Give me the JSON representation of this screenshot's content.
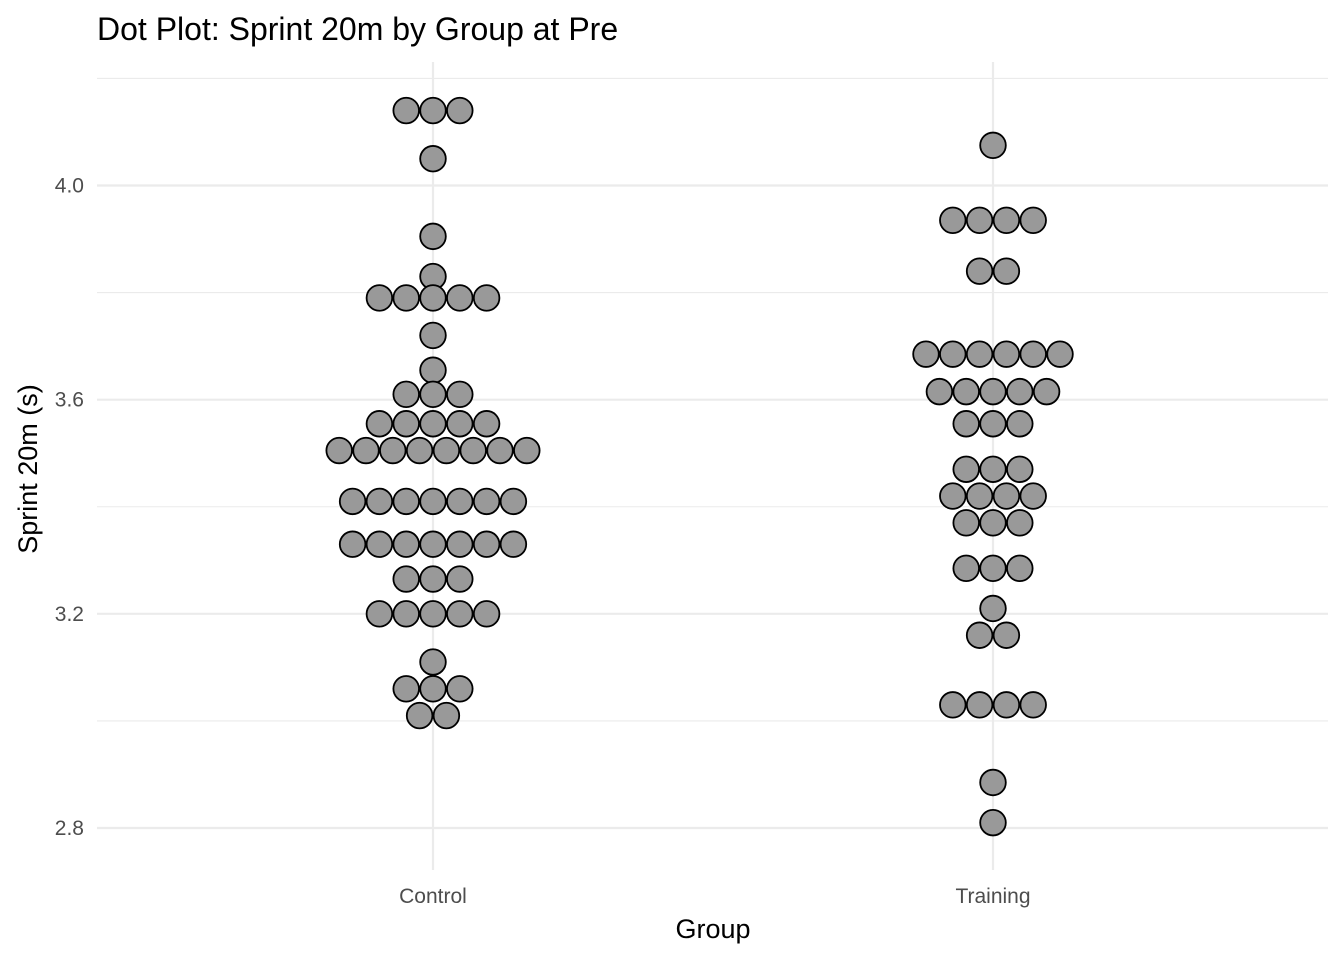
{
  "chart_data": {
    "type": "scatter",
    "subtype": "dotplot",
    "title": "Dot Plot: Sprint 20m by Group at Pre",
    "xlabel": "Group",
    "ylabel": "Sprint 20m (s)",
    "categories": [
      "Control",
      "Training"
    ],
    "y_ticks": [
      "2.8",
      "3.2",
      "3.6",
      "4.0"
    ],
    "ylim": [
      2.76,
      4.2
    ],
    "grid": true,
    "dot_fill": "#999999",
    "dot_stroke": "#000000",
    "series": [
      {
        "category": "Control",
        "rows": [
          {
            "y": 4.14,
            "count": 3
          },
          {
            "y": 4.05,
            "count": 1
          },
          {
            "y": 3.905,
            "count": 1
          },
          {
            "y": 3.83,
            "count": 1
          },
          {
            "y": 3.79,
            "count": 5
          },
          {
            "y": 3.72,
            "count": 1
          },
          {
            "y": 3.655,
            "count": 1
          },
          {
            "y": 3.61,
            "count": 3
          },
          {
            "y": 3.555,
            "count": 5
          },
          {
            "y": 3.505,
            "count": 8
          },
          {
            "y": 3.41,
            "count": 7
          },
          {
            "y": 3.33,
            "count": 7
          },
          {
            "y": 3.265,
            "count": 3
          },
          {
            "y": 3.2,
            "count": 5
          },
          {
            "y": 3.11,
            "count": 1
          },
          {
            "y": 3.06,
            "count": 3
          },
          {
            "y": 3.01,
            "count": 2
          }
        ]
      },
      {
        "category": "Training",
        "rows": [
          {
            "y": 4.075,
            "count": 1
          },
          {
            "y": 3.935,
            "count": 4
          },
          {
            "y": 3.84,
            "count": 2
          },
          {
            "y": 3.685,
            "count": 6
          },
          {
            "y": 3.615,
            "count": 5
          },
          {
            "y": 3.555,
            "count": 3
          },
          {
            "y": 3.47,
            "count": 3
          },
          {
            "y": 3.42,
            "count": 4
          },
          {
            "y": 3.37,
            "count": 3
          },
          {
            "y": 3.285,
            "count": 3
          },
          {
            "y": 3.21,
            "count": 1
          },
          {
            "y": 3.16,
            "count": 2
          },
          {
            "y": 3.03,
            "count": 4
          },
          {
            "y": 2.885,
            "count": 1
          },
          {
            "y": 2.81,
            "count": 1
          }
        ]
      }
    ]
  }
}
